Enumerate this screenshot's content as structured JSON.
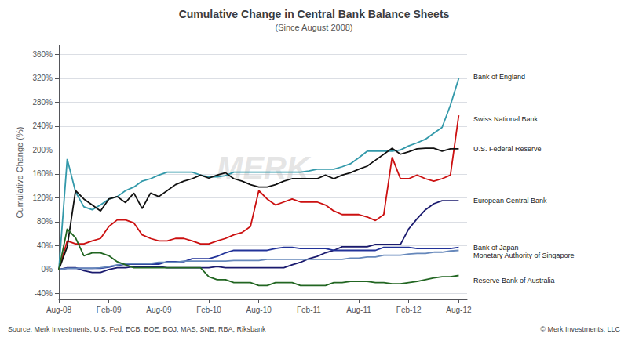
{
  "chart_data": {
    "type": "line",
    "title": "Cumulative Change in Central Bank Balance Sheets",
    "subtitle": "(Since August 2008)",
    "ylabel": "Cumulative Change (%)",
    "source_left": "Source: Merk Investments, U.S. Fed, ECB, BOE, BOJ, MAS, SNB, RBA, Riksbank",
    "source_right": "© Merk Investments, LLC",
    "watermark": "MERK",
    "grid": true,
    "xlim": [
      0,
      49
    ],
    "xticks": [
      {
        "value": 0,
        "label": "Aug-08"
      },
      {
        "value": 6,
        "label": "Feb-09"
      },
      {
        "value": 12,
        "label": "Aug-09"
      },
      {
        "value": 18,
        "label": "Feb-10"
      },
      {
        "value": 24,
        "label": "Aug-10"
      },
      {
        "value": 30,
        "label": "Feb-11"
      },
      {
        "value": 36,
        "label": "Aug-11"
      },
      {
        "value": 42,
        "label": "Feb-12"
      },
      {
        "value": 48,
        "label": "Aug-12"
      }
    ],
    "ylim": [
      -50,
      375
    ],
    "yticks": [
      {
        "value": -40,
        "label": "-40%"
      },
      {
        "value": 0,
        "label": "0%"
      },
      {
        "value": 40,
        "label": "40%"
      },
      {
        "value": 80,
        "label": "80%"
      },
      {
        "value": 120,
        "label": "120%"
      },
      {
        "value": 160,
        "label": "160%"
      },
      {
        "value": 200,
        "label": "200%"
      },
      {
        "value": 240,
        "label": "240%"
      },
      {
        "value": 280,
        "label": "280%"
      },
      {
        "value": 320,
        "label": "320%"
      },
      {
        "value": 360,
        "label": "360%"
      }
    ],
    "x": [
      0,
      1,
      2,
      3,
      4,
      5,
      6,
      7,
      8,
      9,
      10,
      11,
      12,
      13,
      14,
      15,
      16,
      17,
      18,
      19,
      20,
      21,
      22,
      23,
      24,
      25,
      26,
      27,
      28,
      29,
      30,
      31,
      32,
      33,
      34,
      35,
      36,
      37,
      38,
      39,
      40,
      41,
      42,
      43,
      44,
      45,
      46,
      47,
      48
    ],
    "series": [
      {
        "name": "Bank of England",
        "color": "#3399aa",
        "values": [
          0,
          185,
          130,
          105,
          100,
          108,
          118,
          122,
          132,
          138,
          148,
          152,
          158,
          163,
          163,
          163,
          163,
          158,
          155,
          155,
          157,
          163,
          163,
          163,
          163,
          163,
          163,
          163,
          163,
          163,
          165,
          168,
          168,
          168,
          172,
          177,
          187,
          198,
          198,
          198,
          198,
          200,
          207,
          212,
          218,
          228,
          238,
          275,
          320
        ]
      },
      {
        "name": "Swiss National Bank",
        "color": "#cc1111",
        "values": [
          0,
          48,
          43,
          43,
          48,
          52,
          72,
          83,
          83,
          78,
          58,
          52,
          48,
          48,
          52,
          52,
          48,
          43,
          43,
          48,
          52,
          58,
          62,
          72,
          132,
          118,
          108,
          113,
          118,
          113,
          113,
          113,
          108,
          98,
          92,
          92,
          92,
          88,
          82,
          92,
          188,
          152,
          152,
          158,
          152,
          148,
          152,
          158,
          258
        ]
      },
      {
        "name": "U.S. Federal Reserve",
        "color": "#111111",
        "values": [
          0,
          38,
          132,
          118,
          108,
          98,
          118,
          122,
          112,
          128,
          102,
          128,
          122,
          132,
          142,
          148,
          152,
          158,
          153,
          158,
          162,
          152,
          148,
          142,
          138,
          138,
          142,
          148,
          152,
          152,
          152,
          152,
          158,
          152,
          158,
          162,
          168,
          173,
          183,
          193,
          203,
          193,
          197,
          202,
          203,
          203,
          198,
          202,
          202
        ]
      },
      {
        "name": "European Central Bank",
        "color": "#1a1a6e",
        "values": [
          0,
          3,
          3,
          -2,
          -5,
          -5,
          0,
          3,
          3,
          5,
          5,
          5,
          5,
          3,
          3,
          3,
          3,
          3,
          3,
          5,
          3,
          3,
          3,
          3,
          3,
          3,
          3,
          3,
          8,
          12,
          18,
          22,
          28,
          32,
          38,
          38,
          38,
          38,
          42,
          42,
          42,
          42,
          68,
          85,
          100,
          110,
          115,
          115,
          115
        ]
      },
      {
        "name": "Bank of Japan",
        "color": "#223399",
        "values": [
          0,
          2,
          2,
          2,
          2,
          2,
          4,
          7,
          9,
          9,
          9,
          9,
          9,
          13,
          13,
          13,
          18,
          18,
          18,
          22,
          28,
          32,
          32,
          32,
          32,
          32,
          35,
          37,
          37,
          35,
          35,
          35,
          35,
          32,
          32,
          32,
          32,
          32,
          32,
          37,
          37,
          37,
          37,
          35,
          35,
          35,
          35,
          35,
          37
        ]
      },
      {
        "name": "Monetary Authority of Singapore",
        "color": "#6688bb",
        "values": [
          0,
          2,
          2,
          2,
          2,
          3,
          5,
          8,
          10,
          10,
          10,
          10,
          12,
          12,
          12,
          14,
          14,
          14,
          14,
          14,
          14,
          15,
          15,
          15,
          15,
          17,
          17,
          17,
          17,
          17,
          17,
          17,
          17,
          17,
          17,
          19,
          19,
          21,
          21,
          24,
          24,
          24,
          26,
          27,
          27,
          29,
          29,
          31,
          32
        ]
      },
      {
        "name": "Reserve Bank of Australia",
        "color": "#226622",
        "values": [
          0,
          68,
          53,
          23,
          28,
          28,
          23,
          13,
          8,
          3,
          3,
          3,
          3,
          3,
          3,
          3,
          3,
          3,
          -12,
          -17,
          -17,
          -22,
          -22,
          -22,
          -27,
          -27,
          -22,
          -22,
          -22,
          -27,
          -27,
          -27,
          -27,
          -22,
          -22,
          -20,
          -20,
          -20,
          -22,
          -22,
          -24,
          -24,
          -22,
          -20,
          -17,
          -14,
          -12,
          -12,
          -10
        ]
      }
    ],
    "annotations": [
      {
        "text": "Bank of England",
        "y": 322
      },
      {
        "text": "Swiss National Bank",
        "y": 252
      },
      {
        "text": "U.S. Federal Reserve",
        "y": 202
      },
      {
        "text": "European Central Bank",
        "y": 115
      },
      {
        "text": "Bank of Japan",
        "y": 37
      },
      {
        "text": "Monetary Authority of Singapore",
        "y": 24
      },
      {
        "text": "Reserve Bank of Australia",
        "y": -18
      }
    ]
  }
}
